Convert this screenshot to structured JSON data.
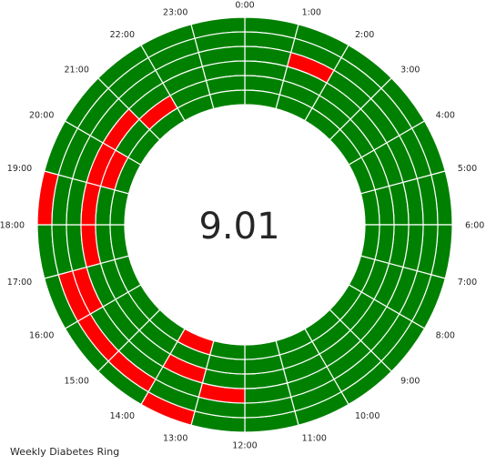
{
  "chart_data": {
    "type": "heatmap",
    "title": "Weekly Diabetes Ring",
    "center_value": "9.01",
    "hour_labels": [
      "0:00",
      "1:00",
      "2:00",
      "3:00",
      "4:00",
      "5:00",
      "6:00",
      "7:00",
      "8:00",
      "9:00",
      "10:00",
      "11:00",
      "12:00",
      "13:00",
      "14:00",
      "15:00",
      "16:00",
      "17:00",
      "18:00",
      "19:00",
      "20:00",
      "21:00",
      "22:00",
      "23:00"
    ],
    "ring_count": 6,
    "colors": {
      "normal": "#008000",
      "high": "#ff0000"
    },
    "high_segments": [
      {
        "ring": 0,
        "hour": 13
      },
      {
        "ring": 0,
        "hour": 18
      },
      {
        "ring": 1,
        "hour": 14
      },
      {
        "ring": 1,
        "hour": 15
      },
      {
        "ring": 1,
        "hour": 16
      },
      {
        "ring": 2,
        "hour": 1
      },
      {
        "ring": 2,
        "hour": 12
      },
      {
        "ring": 2,
        "hour": 16
      },
      {
        "ring": 3,
        "hour": 13
      },
      {
        "ring": 3,
        "hour": 17
      },
      {
        "ring": 3,
        "hour": 18
      },
      {
        "ring": 3,
        "hour": 19
      },
      {
        "ring": 3,
        "hour": 20
      },
      {
        "ring": 4,
        "hour": 19
      },
      {
        "ring": 4,
        "hour": 21
      },
      {
        "ring": 5,
        "hour": 13
      }
    ]
  }
}
